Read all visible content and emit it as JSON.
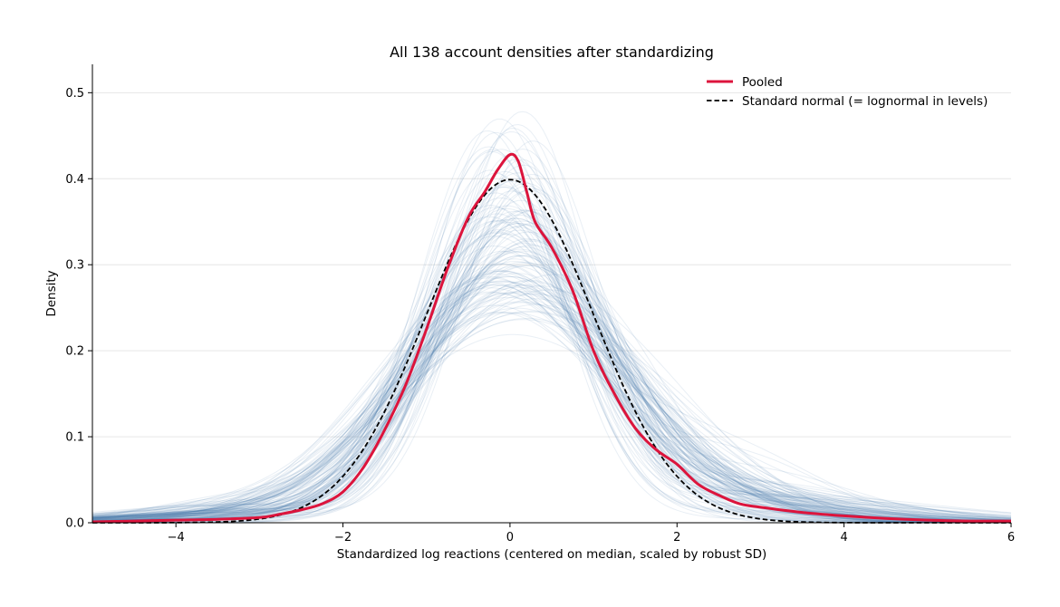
{
  "chart_data": {
    "type": "line",
    "title": "All 138 account densities after standardizing",
    "xlabel": "Standardized log reactions (centered on median, scaled by robust SD)",
    "ylabel": "Density",
    "xlim": [
      -5,
      6
    ],
    "ylim": [
      0,
      0.533
    ],
    "xticks": [
      -4,
      -2,
      0,
      2,
      4,
      6
    ],
    "xtick_labels": [
      "−4",
      "−2",
      "0",
      "2",
      "4",
      "6"
    ],
    "yticks": [
      0.0,
      0.1,
      0.2,
      0.3,
      0.4,
      0.5
    ],
    "ytick_labels": [
      "0.0",
      "0.1",
      "0.2",
      "0.3",
      "0.4",
      "0.5"
    ],
    "grid": "horizontal",
    "legend_position": "top-right",
    "account_count": 138,
    "series": [
      {
        "name": "Pooled",
        "color": "#dc143c",
        "style": "solid",
        "x": [
          -5,
          -4.5,
          -4,
          -3.5,
          -3,
          -2.75,
          -2.5,
          -2.25,
          -2,
          -1.75,
          -1.5,
          -1.25,
          -1,
          -0.75,
          -0.5,
          -0.3,
          -0.15,
          0,
          0.1,
          0.2,
          0.3,
          0.5,
          0.75,
          1,
          1.25,
          1.5,
          1.75,
          2,
          2.25,
          2.5,
          2.75,
          3,
          3.5,
          4,
          4.5,
          5,
          5.5,
          6
        ],
        "y": [
          0.001,
          0.002,
          0.003,
          0.004,
          0.006,
          0.01,
          0.015,
          0.022,
          0.036,
          0.065,
          0.108,
          0.16,
          0.225,
          0.295,
          0.355,
          0.385,
          0.41,
          0.428,
          0.42,
          0.385,
          0.35,
          0.32,
          0.27,
          0.2,
          0.15,
          0.11,
          0.085,
          0.068,
          0.045,
          0.032,
          0.022,
          0.018,
          0.012,
          0.008,
          0.005,
          0.003,
          0.002,
          0.002
        ]
      },
      {
        "name": "Standard normal (= lognormal in levels)",
        "color": "#000000",
        "style": "dashed",
        "function": "standard_normal_pdf",
        "x_range": [
          -5,
          6
        ]
      }
    ],
    "background_curves": {
      "count": 138,
      "color": "#4a7fab",
      "opacity": 0.12
    }
  }
}
